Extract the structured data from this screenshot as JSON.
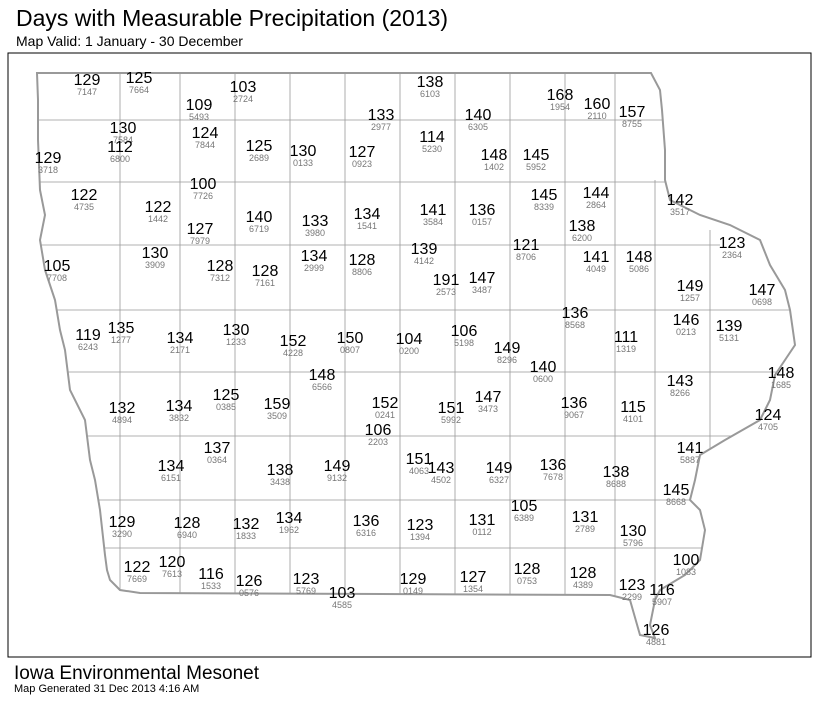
{
  "header": {
    "title": "Days with Measurable Precipitation (2013)",
    "subtitle": "Map Valid: 1 January - 30 December"
  },
  "stations": [
    {
      "days": 129,
      "id": "7147"
    },
    {
      "days": 125,
      "id": "7664"
    },
    {
      "days": 103,
      "id": "2724"
    },
    {
      "days": 138,
      "id": "6103"
    },
    {
      "days": 109,
      "id": "5493"
    },
    {
      "days": 133,
      "id": "2977"
    },
    {
      "days": 140,
      "id": "6305"
    },
    {
      "days": 168,
      "id": "1954"
    },
    {
      "days": 160,
      "id": "2110"
    },
    {
      "days": 157,
      "id": "8755"
    },
    {
      "days": 130,
      "id": "7584"
    },
    {
      "days": 112,
      "id": "6800"
    },
    {
      "days": 124,
      "id": "7844"
    },
    {
      "days": 125,
      "id": "2689"
    },
    {
      "days": 130,
      "id": "0133"
    },
    {
      "days": 127,
      "id": "0923"
    },
    {
      "days": 114,
      "id": "5230"
    },
    {
      "days": 148,
      "id": "1402"
    },
    {
      "days": 145,
      "id": "5952"
    },
    {
      "days": 129,
      "id": "3718"
    },
    {
      "days": 122,
      "id": "4735"
    },
    {
      "days": 122,
      "id": "1442"
    },
    {
      "days": 100,
      "id": "7726"
    },
    {
      "days": 145,
      "id": "8339"
    },
    {
      "days": 144,
      "id": "2864"
    },
    {
      "days": 142,
      "id": "3517"
    },
    {
      "days": 127,
      "id": "7979"
    },
    {
      "days": 140,
      "id": "6719"
    },
    {
      "days": 133,
      "id": "3980"
    },
    {
      "days": 134,
      "id": "1541"
    },
    {
      "days": 141,
      "id": "3584"
    },
    {
      "days": 136,
      "id": "0157"
    },
    {
      "days": 138,
      "id": "6200"
    },
    {
      "days": 123,
      "id": "2364"
    },
    {
      "days": 130,
      "id": "3909"
    },
    {
      "days": 105,
      "id": "7708"
    },
    {
      "days": 128,
      "id": "7312"
    },
    {
      "days": 128,
      "id": "7161"
    },
    {
      "days": 134,
      "id": "2999"
    },
    {
      "days": 128,
      "id": "8806"
    },
    {
      "days": 139,
      "id": "4142"
    },
    {
      "days": 121,
      "id": "8706"
    },
    {
      "days": 141,
      "id": "4049"
    },
    {
      "days": 148,
      "id": "5086"
    },
    {
      "days": 191,
      "id": "2573"
    },
    {
      "days": 147,
      "id": "3487"
    },
    {
      "days": 149,
      "id": "1257"
    },
    {
      "days": 147,
      "id": "0698"
    },
    {
      "days": 119,
      "id": "6243"
    },
    {
      "days": 135,
      "id": "1277"
    },
    {
      "days": 134,
      "id": "2171"
    },
    {
      "days": 130,
      "id": "1233"
    },
    {
      "days": 152,
      "id": "4228"
    },
    {
      "days": 150,
      "id": "0807"
    },
    {
      "days": 104,
      "id": "0200"
    },
    {
      "days": 106,
      "id": "5198"
    },
    {
      "days": 136,
      "id": "8568"
    },
    {
      "days": 146,
      "id": "0213"
    },
    {
      "days": 111,
      "id": "1319"
    },
    {
      "days": 139,
      "id": "5131"
    },
    {
      "days": 149,
      "id": "8296"
    },
    {
      "days": 140,
      "id": "0600"
    },
    {
      "days": 148,
      "id": "6566"
    },
    {
      "days": 143,
      "id": "8266"
    },
    {
      "days": 148,
      "id": "1685"
    },
    {
      "days": 132,
      "id": "4894"
    },
    {
      "days": 134,
      "id": "3832"
    },
    {
      "days": 125,
      "id": "0385"
    },
    {
      "days": 159,
      "id": "3509"
    },
    {
      "days": 152,
      "id": "0241"
    },
    {
      "days": 151,
      "id": "5992"
    },
    {
      "days": 147,
      "id": "3473"
    },
    {
      "days": 136,
      "id": "9067"
    },
    {
      "days": 115,
      "id": "4101"
    },
    {
      "days": 124,
      "id": "4705"
    },
    {
      "days": 106,
      "id": "2203"
    },
    {
      "days": 137,
      "id": "0364"
    },
    {
      "days": 134,
      "id": "6151"
    },
    {
      "days": 138,
      "id": "3438"
    },
    {
      "days": 149,
      "id": "9132"
    },
    {
      "days": 151,
      "id": "4063"
    },
    {
      "days": 143,
      "id": "4502"
    },
    {
      "days": 149,
      "id": "6327"
    },
    {
      "days": 136,
      "id": "7678"
    },
    {
      "days": 138,
      "id": "8688"
    },
    {
      "days": 141,
      "id": "5887"
    },
    {
      "days": 145,
      "id": "8668"
    },
    {
      "days": 105,
      "id": "6389"
    },
    {
      "days": 129,
      "id": "3290"
    },
    {
      "days": 128,
      "id": "6940"
    },
    {
      "days": 132,
      "id": "1833"
    },
    {
      "days": 134,
      "id": "1962"
    },
    {
      "days": 136,
      "id": "6316"
    },
    {
      "days": 123,
      "id": "1394"
    },
    {
      "days": 131,
      "id": "0112"
    },
    {
      "days": 131,
      "id": "2789"
    },
    {
      "days": 130,
      "id": "5796"
    },
    {
      "days": 100,
      "id": "1083"
    },
    {
      "days": 122,
      "id": "7669"
    },
    {
      "days": 120,
      "id": "7613"
    },
    {
      "days": 116,
      "id": "1533"
    },
    {
      "days": 126,
      "id": "0576"
    },
    {
      "days": 123,
      "id": "5769"
    },
    {
      "days": 103,
      "id": "4585"
    },
    {
      "days": 129,
      "id": "0149"
    },
    {
      "days": 127,
      "id": "1354"
    },
    {
      "days": 128,
      "id": "0753"
    },
    {
      "days": 128,
      "id": "4389"
    },
    {
      "days": 123,
      "id": "2299"
    },
    {
      "days": 116,
      "id": "5907"
    },
    {
      "days": 126,
      "id": "4881"
    }
  ],
  "footer": {
    "source": "Iowa Environmental Mesonet",
    "generated": "Map Generated 31 Dec 2013 4:16 AM"
  }
}
